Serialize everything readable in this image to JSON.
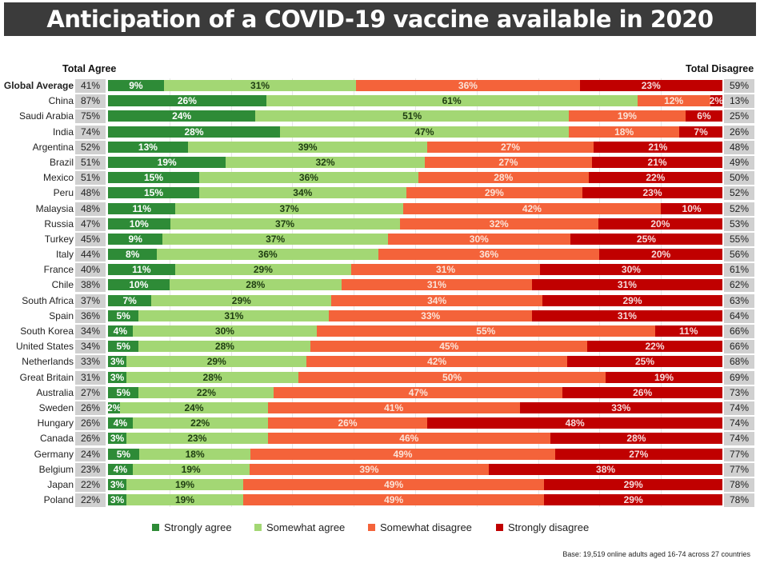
{
  "chart_data": {
    "type": "bar",
    "orientation": "horizontal-stacked",
    "title": "Anticipation of a COVID-19 vaccine available in 2020",
    "left_header": "Total Agree",
    "right_header": "Total Disagree",
    "footnote": "Base: 19,519 online adults aged 16-74 across 27 countries",
    "categories": [
      "Global Average",
      "China",
      "Saudi Arabia",
      "India",
      "Argentina",
      "Brazil",
      "Mexico",
      "Peru",
      "Malaysia",
      "Russia",
      "Turkey",
      "Italy",
      "France",
      "Chile",
      "South Africa",
      "Spain",
      "South Korea",
      "United States",
      "Netherlands",
      "Great Britain",
      "Australia",
      "Sweden",
      "Hungary",
      "Canada",
      "Germany",
      "Belgium",
      "Japan",
      "Poland"
    ],
    "total_agree": [
      41,
      87,
      75,
      74,
      52,
      51,
      51,
      48,
      48,
      47,
      45,
      44,
      40,
      38,
      37,
      36,
      34,
      34,
      33,
      31,
      27,
      26,
      26,
      26,
      24,
      23,
      22,
      22
    ],
    "total_disagree": [
      59,
      13,
      25,
      26,
      48,
      49,
      50,
      52,
      52,
      53,
      55,
      56,
      61,
      62,
      63,
      64,
      66,
      66,
      68,
      69,
      73,
      74,
      74,
      74,
      77,
      77,
      78,
      78
    ],
    "series": [
      {
        "name": "Strongly agree",
        "color": "#2e8b37",
        "values": [
          9,
          26,
          24,
          28,
          13,
          19,
          15,
          15,
          11,
          10,
          9,
          8,
          11,
          10,
          7,
          5,
          4,
          5,
          3,
          3,
          5,
          2,
          4,
          3,
          5,
          4,
          3,
          3
        ]
      },
      {
        "name": "Somewhat agree",
        "color": "#a3d774",
        "values": [
          31,
          61,
          51,
          47,
          39,
          32,
          36,
          34,
          37,
          37,
          37,
          36,
          29,
          28,
          29,
          31,
          30,
          28,
          29,
          28,
          22,
          24,
          22,
          23,
          18,
          19,
          19,
          19
        ]
      },
      {
        "name": "Somewhat disagree",
        "color": "#f4633a",
        "values": [
          36,
          12,
          19,
          18,
          27,
          27,
          28,
          29,
          42,
          32,
          30,
          36,
          31,
          31,
          34,
          33,
          55,
          45,
          42,
          50,
          47,
          41,
          26,
          46,
          49,
          39,
          49,
          49
        ]
      },
      {
        "name": "Strongly disagree",
        "color": "#c00000",
        "values": [
          23,
          2,
          6,
          7,
          21,
          21,
          22,
          23,
          10,
          20,
          25,
          20,
          30,
          31,
          29,
          31,
          11,
          22,
          25,
          19,
          26,
          33,
          48,
          28,
          27,
          38,
          29,
          29
        ]
      }
    ],
    "xlim": [
      0,
      100
    ],
    "grid": true,
    "legend_position": "bottom"
  }
}
